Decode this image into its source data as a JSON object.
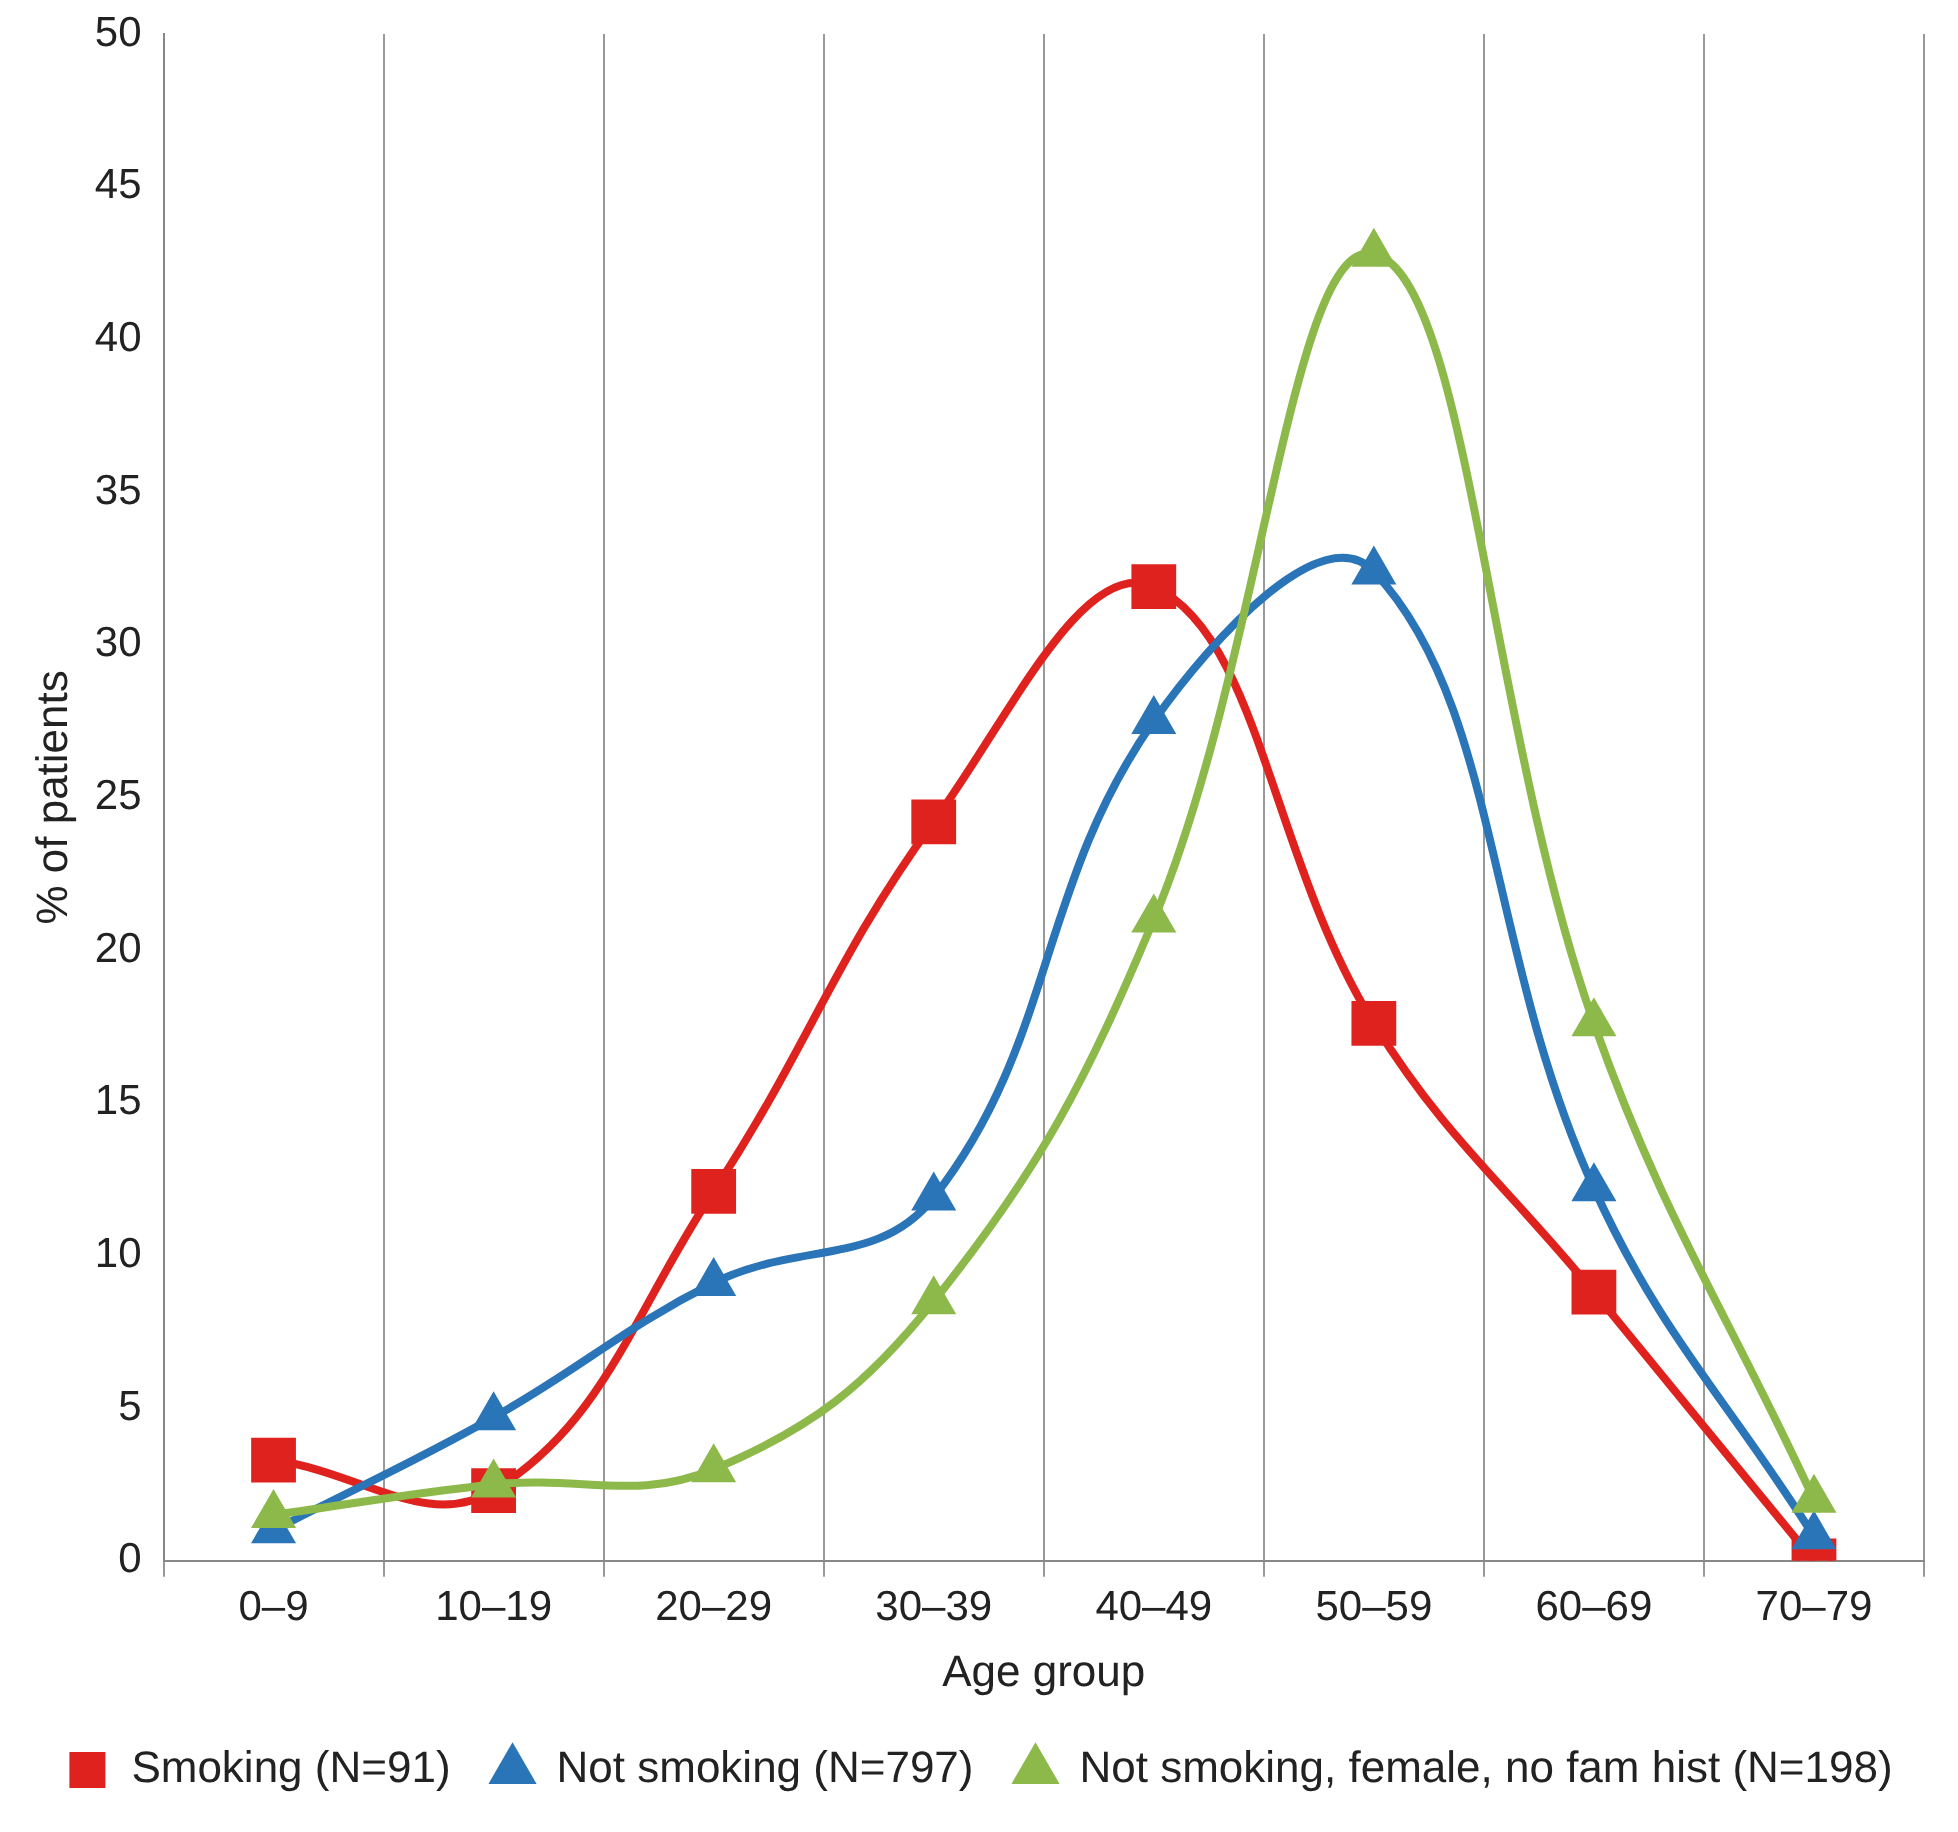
{
  "chart_data": {
    "type": "line",
    "xlabel": "Age group",
    "ylabel": "% of patients",
    "categories": [
      "0–9",
      "10–19",
      "20–29",
      "30–39",
      "40–49",
      "50–59",
      "60–69",
      "70–79"
    ],
    "ylim": [
      0,
      50
    ],
    "yticks": [
      0,
      5,
      10,
      15,
      20,
      25,
      30,
      35,
      40,
      45,
      50
    ],
    "grid": "x",
    "legend": "bottom",
    "series": [
      {
        "name": "Smoking (N=91)",
        "color": "#e0221f",
        "marker": "square",
        "values": [
          3.3,
          2.3,
          12.1,
          24.2,
          31.9,
          17.6,
          8.8,
          0
        ]
      },
      {
        "name": "Not smoking (N=797)",
        "color": "#2a74b8",
        "marker": "triangle",
        "values": [
          1.0,
          4.7,
          9.1,
          11.9,
          27.5,
          32.4,
          12.2,
          0.8
        ]
      },
      {
        "name": "Not smoking, female, no fam hist (N=198)",
        "color": "#8db94a",
        "marker": "triangle",
        "values": [
          1.5,
          2.5,
          3.0,
          8.5,
          21.0,
          42.8,
          17.6,
          2.0
        ]
      }
    ]
  }
}
